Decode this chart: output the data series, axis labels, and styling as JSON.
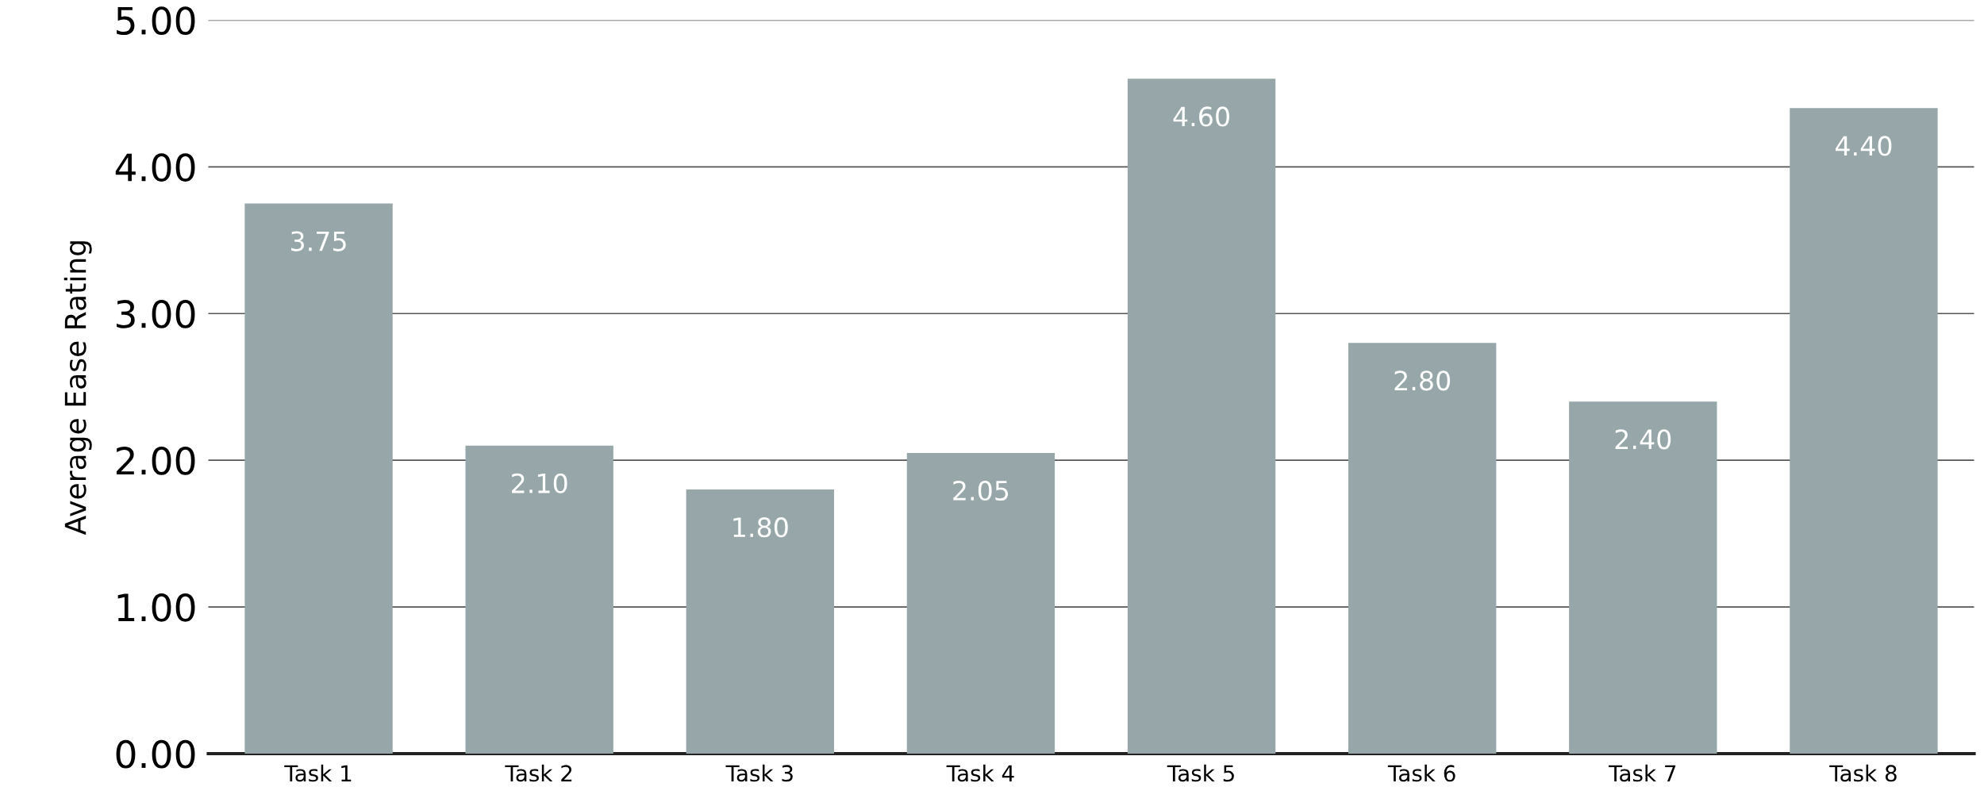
{
  "chart_data": {
    "type": "bar",
    "ylabel": "Average Ease Rating",
    "categories": [
      "Task 1",
      "Task 2",
      "Task 3",
      "Task 4",
      "Task 5",
      "Task 6",
      "Task 7",
      "Task 8"
    ],
    "values": [
      3.75,
      2.1,
      1.8,
      2.05,
      4.6,
      2.8,
      2.4,
      4.4
    ],
    "value_labels": [
      "3.75",
      "2.10",
      "1.80",
      "2.05",
      "4.60",
      "2.80",
      "2.40",
      "4.40"
    ],
    "color": "#96a6a9",
    "ylim": [
      0,
      5
    ],
    "yticks": [
      {
        "value": 0,
        "label": "0.00"
      },
      {
        "value": 1,
        "label": "1.00"
      },
      {
        "value": 2,
        "label": "2.00"
      },
      {
        "value": 3,
        "label": "3.00"
      },
      {
        "value": 4,
        "label": "4.00"
      },
      {
        "value": 5,
        "label": "5.00"
      }
    ],
    "grid": "y"
  }
}
